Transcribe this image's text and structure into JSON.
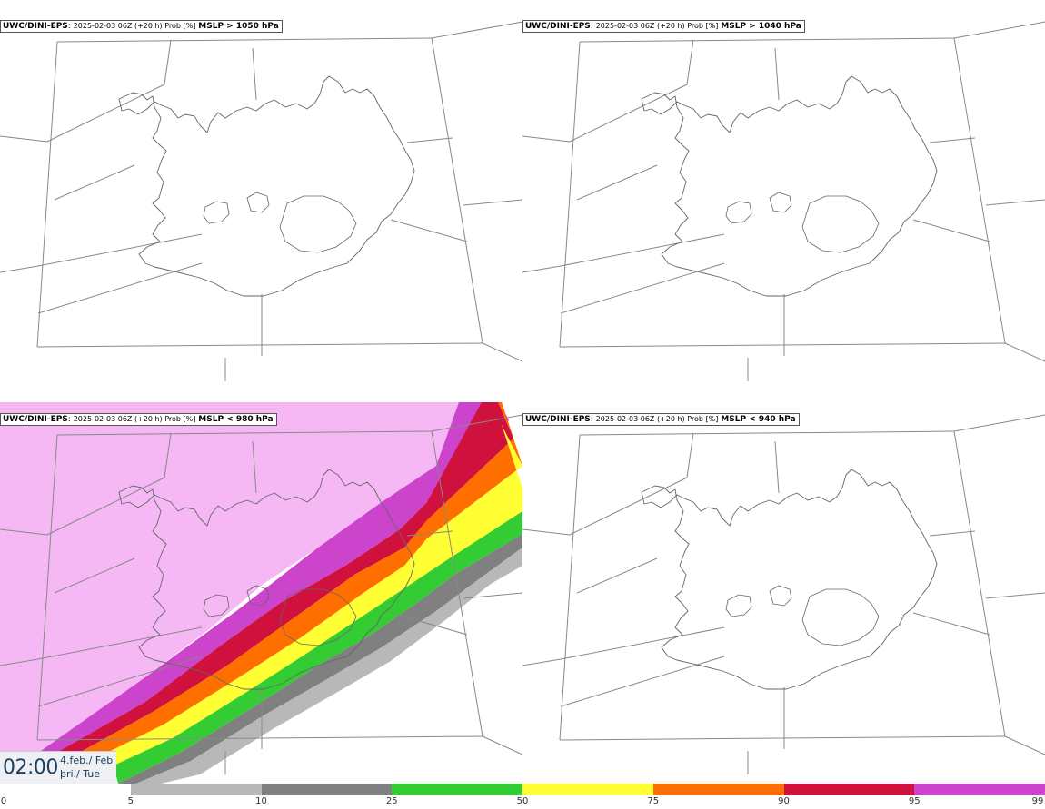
{
  "panels": [
    {
      "model": "UWC/DINI-EPS",
      "meta": "2025-02-03 06Z (+20 h) Prob [%]",
      "threshold": "MSLP > 1050 hPa"
    },
    {
      "model": "UWC/DINI-EPS",
      "meta": "2025-02-03 06Z (+20 h) Prob [%]",
      "threshold": "MSLP > 1040 hPa"
    },
    {
      "model": "UWC/DINI-EPS",
      "meta": "2025-02-03 06Z (+20 h) Prob [%]",
      "threshold": "MSLP < 980 hPa"
    },
    {
      "model": "UWC/DINI-EPS",
      "meta": "2025-02-03 06Z (+20 h) Prob [%]",
      "threshold": "MSLP < 940 hPa"
    }
  ],
  "timestamp": {
    "time": "02:00",
    "date_line1": "4.feb./ Feb",
    "date_line2": "þri./ Tue"
  },
  "colorbar": {
    "labels": [
      "0",
      "5",
      "10",
      "25",
      "50",
      "75",
      "90",
      "95",
      "99"
    ],
    "colors": [
      "#ffffff",
      "#b8b8b8",
      "#808080",
      "#33cc33",
      "#ffff33",
      "#ff6f00",
      "#d0103d",
      "#cc44cc",
      "#f5b8f5"
    ]
  },
  "map_colors": {
    "coast": "#666666",
    "borders": "#888888"
  }
}
